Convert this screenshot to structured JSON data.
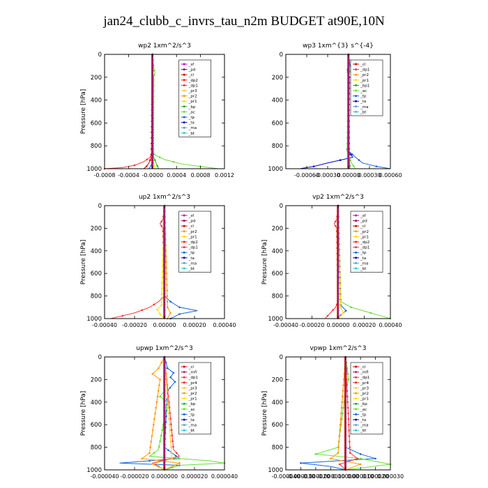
{
  "figure_title": "jan24_clubb_c_invrs_tau_n2m  BUDGET at90E,10N",
  "colors": {
    "_sf": "#cc00cc",
    "_pd": "#990066",
    "_cl": "#cc0000",
    "_dp2": "#ff1a1a",
    "_dp1": "#ff3333",
    "_pr3": "#ffcc33",
    "_pr2": "#ff9900",
    "_pr1": "#ffdd00",
    "_bp": "#22aa22",
    "_ac": "#66dd33",
    "_tp": "#1166dd",
    "_ta": "#0000cc",
    "_ma": "#6699cc",
    "_bt": "#22cccc",
    "_mfl": "#aa2266",
    "_pr4": "#ee2222",
    "_pr5": "#ff6600"
  },
  "chart_data": [
    {
      "type": "line",
      "title": "wp2  1xm^2/s^3",
      "ylabel": "Pressure [hPa]",
      "xlim": [
        -0.0008,
        0.0012
      ],
      "ylim": [
        1000,
        0
      ],
      "xticks": [
        -0.0008,
        -0.0004,
        0,
        0.0004,
        0.0008,
        0.0012
      ],
      "xtick_labels": [
        "-0.0008",
        "-0.0004",
        "-0.0000",
        "0.0004",
        "0.0008",
        "0.0012"
      ],
      "yticks": [
        0,
        200,
        400,
        600,
        800,
        1000
      ],
      "ytick_labels": [
        "0",
        "200",
        "400",
        "600",
        "800",
        "1000"
      ],
      "legend": [
        "_sf",
        "_pd",
        "_cl",
        "_dp2",
        "_dp1",
        "_pr3",
        "_pr2",
        "_pr1",
        "_bp",
        "_ac",
        "_tp",
        "_ta",
        "_ma",
        "_bt"
      ],
      "series": [
        {
          "name": "_dp1",
          "p": [
            0,
            850,
            900,
            940,
            970,
            990,
            1000
          ],
          "v": [
            0,
            0,
            -4e-05,
            -0.00015,
            -0.0003,
            -0.0005,
            -0.0008
          ]
        },
        {
          "name": "_cl",
          "p": [
            0,
            900,
            950,
            980,
            1000
          ],
          "v": [
            0,
            -2e-05,
            -6e-05,
            -0.0001,
            -0.00015
          ]
        },
        {
          "name": "_ac",
          "p": [
            0,
            120,
            160,
            200,
            850,
            880,
            920,
            960,
            1000
          ],
          "v": [
            0,
            2e-05,
            4e-05,
            2e-05,
            1e-05,
            4e-05,
            0.0002,
            0.0005,
            0.0011
          ]
        },
        {
          "name": "_bp",
          "p": [
            0,
            850,
            900,
            950,
            1000
          ],
          "v": [
            0,
            0,
            2e-05,
            6e-05,
            0.0001
          ]
        },
        {
          "name": "_pr1",
          "p": [
            0,
            900,
            950,
            1000
          ],
          "v": [
            0,
            1e-05,
            2e-05,
            4e-05
          ]
        },
        {
          "name": "_tp",
          "p": [
            0,
            900,
            970,
            1000
          ],
          "v": [
            0,
            1e-05,
            -2e-05,
            -6e-05
          ]
        },
        {
          "name": "_bt",
          "p": [
            0,
            1000
          ],
          "v": [
            0,
            0
          ]
        },
        {
          "name": "_pd",
          "p": [
            0,
            1000
          ],
          "v": [
            0,
            0
          ]
        }
      ]
    },
    {
      "type": "line",
      "title": "wp3  1xm^{3} s^{-4}",
      "ylabel": "",
      "xlim": [
        -0.0009,
        0.0006
      ],
      "ylim": [
        1000,
        0
      ],
      "xticks": [
        -0.0006,
        -0.0003,
        0,
        0.0003,
        0.0006
      ],
      "xtick_labels": [
        "-0.00060",
        "-0.00030",
        "0.00000",
        "0.00030",
        "0.00060"
      ],
      "yticks": [
        0,
        200,
        400,
        600,
        800,
        1000
      ],
      "ytick_labels": [
        "0",
        "200",
        "400",
        "600",
        "800",
        "1000"
      ],
      "legend": [
        "_cl",
        "_dp1",
        "_pr2",
        "_pr1",
        "_bp1",
        "_ac",
        "_tp",
        "_ta",
        "_ma",
        "_bt"
      ],
      "series": [
        {
          "name": "_ta",
          "p": [
            0,
            100,
            130,
            200,
            800,
            830,
            900,
            950,
            980,
            1000
          ],
          "v": [
            0,
            2e-05,
            -2e-05,
            1e-05,
            0,
            -2e-05,
            6e-05,
            -0.0003,
            -0.0005,
            -0.0007
          ]
        },
        {
          "name": "_tp",
          "p": [
            0,
            850,
            900,
            950,
            980,
            1000
          ],
          "v": [
            0,
            1e-05,
            0.0001,
            0.0002,
            0.0004,
            0.0006
          ]
        },
        {
          "name": "_ac",
          "p": [
            0,
            150,
            200,
            850,
            900,
            950,
            1000
          ],
          "v": [
            0,
            2e-05,
            0,
            -2e-05,
            1e-05,
            4e-05,
            0.0001
          ]
        },
        {
          "name": "_bp",
          "p": [
            0,
            900,
            1000
          ],
          "v": [
            0,
            1e-05,
            2e-05
          ]
        },
        {
          "name": "_pr2",
          "p": [
            0,
            850,
            900,
            1000
          ],
          "v": [
            0,
            -1e-05,
            1e-05,
            0
          ]
        },
        {
          "name": "_cl",
          "p": [
            0,
            1000
          ],
          "v": [
            0,
            0
          ]
        },
        {
          "name": "_dp1",
          "p": [
            0,
            1000
          ],
          "v": [
            0,
            0
          ]
        }
      ]
    },
    {
      "type": "line",
      "title": "up2  1xm^2/s^3",
      "ylabel": "Pressure [hPa]",
      "xlim": [
        -0.0004,
        0.0004
      ],
      "ylim": [
        1000,
        0
      ],
      "xticks": [
        -0.0004,
        -0.0002,
        0,
        0.0002,
        0.0004
      ],
      "xtick_labels": [
        "-0.00040",
        "-0.00020",
        "0.00000",
        "0.00020",
        "0.00040"
      ],
      "yticks": [
        0,
        200,
        400,
        600,
        800,
        1000
      ],
      "ytick_labels": [
        "0",
        "200",
        "400",
        "600",
        "800",
        "1000"
      ],
      "legend": [
        "_sf",
        "_pd",
        "_cl",
        "_pr2",
        "_pr1",
        "_dp2",
        "_dp1",
        "_tp",
        "_ta",
        "_ma",
        "_bt"
      ],
      "series": [
        {
          "name": "_dp1",
          "p": [
            0,
            120,
            160,
            200,
            800,
            850,
            900,
            950,
            1000
          ],
          "v": [
            0,
            -1e-05,
            -3e-05,
            -1e-05,
            0,
            -4e-05,
            -0.0001,
            -0.0002,
            -0.00036
          ]
        },
        {
          "name": "_tp",
          "p": [
            0,
            800,
            850,
            900,
            930,
            960,
            1000
          ],
          "v": [
            0,
            0,
            4e-05,
            0.0001,
            0.00022,
            0.0001,
            4e-05
          ]
        },
        {
          "name": "_pr1",
          "p": [
            0,
            880,
            920,
            960,
            1000
          ],
          "v": [
            0,
            -2e-05,
            -5e-05,
            -3e-05,
            0
          ]
        },
        {
          "name": "_pr2",
          "p": [
            0,
            900,
            950,
            1000
          ],
          "v": [
            0,
            2e-05,
            4e-05,
            2e-05
          ]
        },
        {
          "name": "_cl",
          "p": [
            0,
            1000
          ],
          "v": [
            0,
            0
          ]
        },
        {
          "name": "_pd",
          "p": [
            0,
            1000
          ],
          "v": [
            0,
            0
          ]
        },
        {
          "name": "_bt",
          "p": [
            0,
            1000
          ],
          "v": [
            0,
            0
          ]
        }
      ]
    },
    {
      "type": "line",
      "title": "vp2  1xm^2/s^3",
      "ylabel": "Pressure [hPa]",
      "xlim": [
        -0.0004,
        0.0004
      ],
      "ylim": [
        1000,
        0
      ],
      "xticks": [
        -0.0004,
        -0.0002,
        0,
        0.0002,
        0.0004
      ],
      "xtick_labels": [
        "-0.00040",
        "-0.00020",
        "0.00000",
        "0.00020",
        "0.00040"
      ],
      "yticks": [
        0,
        200,
        400,
        600,
        800,
        1000
      ],
      "ytick_labels": [
        "0",
        "200",
        "400",
        "600",
        "800",
        "1000"
      ],
      "legend": [
        "_sf",
        "_pd",
        "_cl",
        "_pr2",
        "_pr1",
        "_dp2",
        "_dp1",
        "_tp",
        "_ta",
        "_ma",
        "_bt"
      ],
      "series": [
        {
          "name": "_dp1",
          "p": [
            0,
            120,
            160,
            200,
            850,
            900,
            950,
            1000
          ],
          "v": [
            0,
            -1e-05,
            -3e-05,
            -1e-05,
            0,
            -2e-05,
            -6e-05,
            -0.0001
          ]
        },
        {
          "name": "_ac",
          "p": [
            0,
            850,
            900,
            950,
            1000
          ],
          "v": [
            0,
            2e-05,
            0.0001,
            0.00025,
            0.0004
          ]
        },
        {
          "name": "_tp",
          "p": [
            0,
            880,
            930,
            970,
            1000
          ],
          "v": [
            0,
            2e-05,
            6e-05,
            2e-05,
            0
          ]
        },
        {
          "name": "_pr1",
          "p": [
            0,
            900,
            950,
            1000
          ],
          "v": [
            0,
            2e-05,
            4e-05,
            0
          ]
        },
        {
          "name": "_cl",
          "p": [
            0,
            1000
          ],
          "v": [
            0,
            0
          ]
        },
        {
          "name": "_pd",
          "p": [
            0,
            1000
          ],
          "v": [
            0,
            0
          ]
        }
      ]
    },
    {
      "type": "line",
      "title": "upwp  1xm^2/s^3",
      "ylabel": "Pressure [hPa]",
      "xlim": [
        -4e-05,
        4e-05
      ],
      "ylim": [
        1000,
        0
      ],
      "xticks": [
        -4e-05,
        -2e-05,
        0,
        2e-05,
        4e-05
      ],
      "xtick_labels": [
        "-0.000040",
        "-0.000020",
        "0.000000",
        "0.000020",
        "0.000040"
      ],
      "yticks": [
        0,
        200,
        400,
        600,
        800,
        1000
      ],
      "ytick_labels": [
        "0",
        "200",
        "400",
        "600",
        "800",
        "1000"
      ],
      "legend": [
        "_cl",
        "_mfl",
        "_dp1",
        "_pr4",
        "_pr3",
        "_pr2",
        "_pr1",
        "_bp",
        "_ac",
        "_tp",
        "_ta",
        "_ma",
        "_bt"
      ],
      "series": [
        {
          "name": "_tp",
          "p": [
            0,
            100,
            140,
            180,
            220,
            300,
            800,
            900,
            940,
            960,
            1000
          ],
          "v": [
            0,
            2e-06,
            6e-06,
            4e-06,
            7e-06,
            2e-06,
            0,
            1e-05,
            -3e-05,
            1e-05,
            0
          ]
        },
        {
          "name": "_ac",
          "p": [
            0,
            300,
            350,
            400,
            820,
            880,
            920,
            940,
            960,
            1000
          ],
          "v": [
            0,
            0,
            -3e-06,
            2e-06,
            -4e-06,
            -1e-05,
            3e-05,
            4e-05,
            1e-05,
            0
          ]
        },
        {
          "name": "_pr2",
          "p": [
            0,
            100,
            150,
            200,
            850,
            900,
            940,
            1000
          ],
          "v": [
            0,
            -4e-06,
            -8e-06,
            -3e-06,
            -1e-05,
            -1.5e-05,
            1e-05,
            0
          ]
        },
        {
          "name": "_dp1",
          "p": [
            0,
            820,
            880,
            940,
            1000
          ],
          "v": [
            0,
            6e-06,
            1e-05,
            -8e-06,
            0
          ]
        },
        {
          "name": "_pr3",
          "p": [
            0,
            900,
            950,
            1000
          ],
          "v": [
            0,
            5e-06,
            -8e-06,
            0
          ]
        },
        {
          "name": "_cl",
          "p": [
            0,
            1000
          ],
          "v": [
            0,
            0
          ]
        },
        {
          "name": "_mfl",
          "p": [
            0,
            1000
          ],
          "v": [
            0,
            0
          ]
        }
      ]
    },
    {
      "type": "line",
      "title": "vpwp  1xm^2/s^3",
      "ylabel": "Pressure [hPa]",
      "xlim": [
        -4e-05,
        3e-05
      ],
      "ylim": [
        1000,
        0
      ],
      "xticks": [
        -4e-05,
        -3e-05,
        -2e-05,
        -1e-05,
        0,
        1e-05,
        2e-05,
        3e-05
      ],
      "xtick_labels": [
        "-0.000040",
        "-0.000030",
        "-0.000020",
        "-0.000010",
        "0.000000",
        "0.000010",
        "0.000020",
        "0.000030"
      ],
      "yticks": [
        0,
        200,
        400,
        600,
        800,
        1000
      ],
      "ytick_labels": [
        "0",
        "200",
        "400",
        "600",
        "800",
        "1000"
      ],
      "legend": [
        "_cl",
        "_mfl",
        "_dp1",
        "_pr4",
        "_pr3",
        "_pr2",
        "_pr1",
        "_bp",
        "_ac",
        "_tp",
        "_ta",
        "_ma",
        "_bt"
      ],
      "series": [
        {
          "name": "_tp",
          "p": [
            0,
            100,
            200,
            800,
            860,
            900,
            940,
            970,
            1000
          ],
          "v": [
            0,
            1e-06,
            0,
            0,
            1e-05,
            2e-05,
            -3e-05,
            -1e-05,
            0
          ]
        },
        {
          "name": "_ac",
          "p": [
            0,
            200,
            300,
            800,
            860,
            900,
            950,
            1000
          ],
          "v": [
            0,
            2e-06,
            0,
            -5e-06,
            -2e-05,
            1e-05,
            3e-05,
            0
          ]
        },
        {
          "name": "_pr2",
          "p": [
            0,
            850,
            900,
            950,
            1000
          ],
          "v": [
            0,
            -5e-06,
            -1e-05,
            1e-05,
            0
          ]
        },
        {
          "name": "_dp1",
          "p": [
            0,
            850,
            900,
            950,
            1000
          ],
          "v": [
            0,
            3e-06,
            8e-06,
            -4e-06,
            0
          ]
        },
        {
          "name": "_cl",
          "p": [
            0,
            1000
          ],
          "v": [
            0,
            0
          ]
        },
        {
          "name": "_mfl",
          "p": [
            0,
            1000
          ],
          "v": [
            0,
            0
          ]
        }
      ]
    }
  ]
}
